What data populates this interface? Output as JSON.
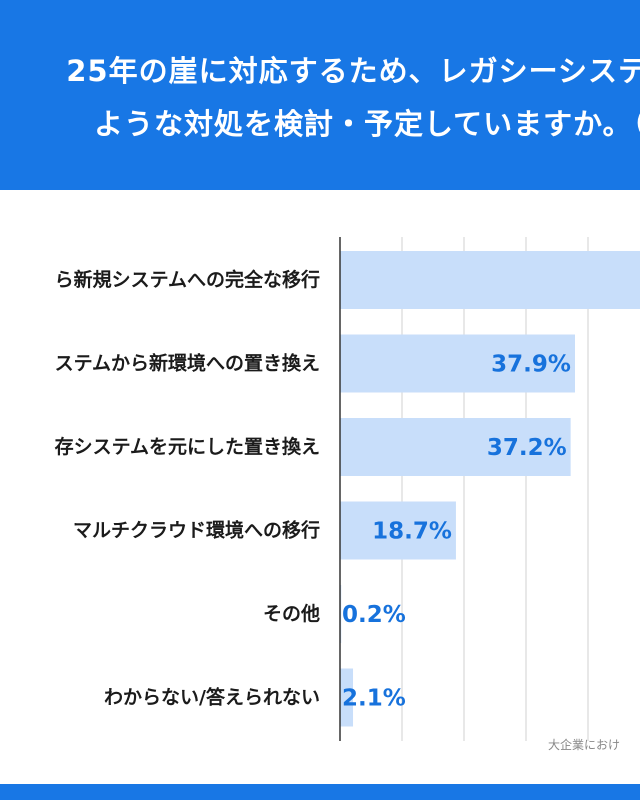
{
  "header": {
    "title_line1": "25年の崖に対応するため、レガシーシステ",
    "title_line2": "ような対処を検討・予定していますか。（"
  },
  "source_note": "大企業におけ",
  "colors": {
    "header_bg": "#1877e5",
    "bar_fill": "#c8defa",
    "value_text": "#1772dc"
  },
  "chart_data": {
    "type": "bar",
    "orientation": "horizontal",
    "title": "",
    "xlabel": "",
    "ylabel": "",
    "categories": [
      "ら新規システムへの完全な移行",
      "ステムから新環境への置き換え",
      "存システムを元にした置き換え",
      "マルチクラウド環境への移行",
      "その他",
      "わからない/答えられない"
    ],
    "values": [
      null,
      37.9,
      37.2,
      18.7,
      0.2,
      2.1
    ],
    "value_labels": [
      "",
      "37.9%",
      "37.2%",
      "18.7%",
      "0.2%",
      "2.1%"
    ],
    "xlim": [
      0,
      50
    ],
    "grid": true
  }
}
